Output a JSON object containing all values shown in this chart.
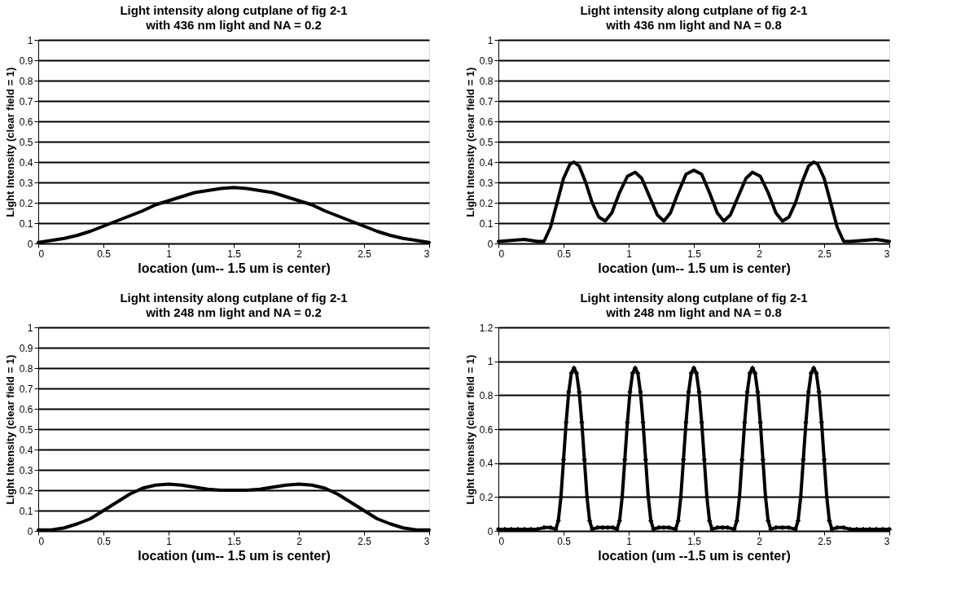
{
  "chart_data": [
    {
      "type": "line",
      "title": "Light intensity along cutplane of fig 2-1",
      "subtitle": "with 436 nm light and NA = 0.2",
      "xlabel": "location (um-- 1.5 um is center)",
      "ylabel": "Light Intensity (clear field = 1)",
      "xlim": [
        0,
        3
      ],
      "xticks": [
        0,
        0.5,
        1,
        1.5,
        2,
        2.5,
        3
      ],
      "ylim": [
        0,
        1
      ],
      "yticks": [
        0,
        0.1,
        0.2,
        0.3,
        0.4,
        0.5,
        0.6,
        0.7,
        0.8,
        0.9,
        1
      ],
      "grid": "y",
      "marker": "none",
      "line_style": "solid",
      "series": [
        {
          "color": "#000000",
          "x": [
            0,
            0.1,
            0.2,
            0.3,
            0.4,
            0.5,
            0.6,
            0.7,
            0.8,
            0.9,
            1.0,
            1.1,
            1.2,
            1.3,
            1.4,
            1.5,
            1.6,
            1.7,
            1.8,
            1.9,
            2.0,
            2.1,
            2.2,
            2.3,
            2.4,
            2.5,
            2.6,
            2.7,
            2.8,
            2.9,
            3.0
          ],
          "values": [
            0.005,
            0.015,
            0.025,
            0.04,
            0.06,
            0.085,
            0.11,
            0.135,
            0.16,
            0.19,
            0.21,
            0.23,
            0.25,
            0.26,
            0.27,
            0.275,
            0.27,
            0.26,
            0.25,
            0.23,
            0.21,
            0.19,
            0.16,
            0.135,
            0.11,
            0.085,
            0.06,
            0.04,
            0.025,
            0.015,
            0.005
          ]
        }
      ]
    },
    {
      "type": "line",
      "title": "Light intensity along cutplane of fig 2-1",
      "subtitle": "with 436 nm light and NA = 0.8",
      "xlabel": "location (um-- 1.5 um is center)",
      "ylabel": "Light Intensity (clear field = 1)",
      "xlim": [
        0,
        3
      ],
      "xticks": [
        0,
        0.5,
        1,
        1.5,
        2,
        2.5,
        3
      ],
      "ylim": [
        0,
        1
      ],
      "yticks": [
        0,
        0.1,
        0.2,
        0.3,
        0.4,
        0.5,
        0.6,
        0.7,
        0.8,
        0.9,
        1
      ],
      "grid": "y",
      "marker": "none",
      "line_style": "solid",
      "series": [
        {
          "color": "#000000",
          "x": [
            0,
            0.1,
            0.2,
            0.3,
            0.35,
            0.4,
            0.45,
            0.5,
            0.55,
            0.58,
            0.62,
            0.67,
            0.72,
            0.77,
            0.82,
            0.87,
            0.93,
            0.99,
            1.05,
            1.1,
            1.16,
            1.22,
            1.27,
            1.32,
            1.38,
            1.44,
            1.5,
            1.56,
            1.62,
            1.68,
            1.73,
            1.78,
            1.84,
            1.9,
            1.95,
            2.01,
            2.07,
            2.13,
            2.18,
            2.23,
            2.28,
            2.33,
            2.38,
            2.42,
            2.45,
            2.5,
            2.55,
            2.6,
            2.65,
            2.7,
            2.8,
            2.9,
            3.0
          ],
          "values": [
            0.01,
            0.015,
            0.02,
            0.01,
            0.01,
            0.08,
            0.2,
            0.32,
            0.39,
            0.4,
            0.38,
            0.3,
            0.2,
            0.13,
            0.11,
            0.15,
            0.25,
            0.33,
            0.35,
            0.32,
            0.23,
            0.14,
            0.11,
            0.15,
            0.25,
            0.34,
            0.36,
            0.34,
            0.25,
            0.15,
            0.11,
            0.14,
            0.23,
            0.32,
            0.35,
            0.33,
            0.25,
            0.15,
            0.11,
            0.13,
            0.2,
            0.3,
            0.38,
            0.4,
            0.39,
            0.32,
            0.2,
            0.08,
            0.01,
            0.01,
            0.015,
            0.02,
            0.01
          ]
        }
      ]
    },
    {
      "type": "line",
      "title": "Light intensity along cutplane of fig 2-1",
      "subtitle": "with 248 nm light and NA = 0.2",
      "xlabel": "location (um-- 1.5 um is center)",
      "ylabel": "Light Intensity (clear field = 1)",
      "xlim": [
        0,
        3
      ],
      "xticks": [
        0,
        0.5,
        1,
        1.5,
        2,
        2.5,
        3
      ],
      "ylim": [
        0,
        1
      ],
      "yticks": [
        0,
        0.1,
        0.2,
        0.3,
        0.4,
        0.5,
        0.6,
        0.7,
        0.8,
        0.9,
        1
      ],
      "grid": "y",
      "marker": "none",
      "line_style": "solid",
      "series": [
        {
          "color": "#000000",
          "x": [
            0,
            0.1,
            0.2,
            0.3,
            0.4,
            0.5,
            0.6,
            0.7,
            0.8,
            0.9,
            1.0,
            1.1,
            1.2,
            1.3,
            1.4,
            1.5,
            1.6,
            1.7,
            1.8,
            1.9,
            2.0,
            2.1,
            2.2,
            2.3,
            2.4,
            2.5,
            2.6,
            2.7,
            2.8,
            2.9,
            3.0
          ],
          "values": [
            0.005,
            0.005,
            0.015,
            0.035,
            0.06,
            0.1,
            0.14,
            0.18,
            0.21,
            0.225,
            0.23,
            0.225,
            0.215,
            0.205,
            0.2,
            0.2,
            0.2,
            0.205,
            0.215,
            0.225,
            0.23,
            0.225,
            0.21,
            0.18,
            0.14,
            0.1,
            0.06,
            0.035,
            0.015,
            0.005,
            0.005
          ]
        }
      ]
    },
    {
      "type": "line",
      "title": "Light intensity along cutplane of fig 2-1",
      "subtitle": "with 248 nm light and NA = 0.8",
      "xlabel": "location (um --1.5 um is center)",
      "ylabel": "Light Intensity (clear field = 1)",
      "xlim": [
        0,
        3
      ],
      "xticks": [
        0,
        0.5,
        1,
        1.5,
        2,
        2.5,
        3
      ],
      "ylim": [
        0,
        1.2
      ],
      "yticks": [
        0,
        0.2,
        0.4,
        0.6,
        0.8,
        1,
        1.2
      ],
      "grid": "y",
      "marker": "diamond",
      "line_style": "solid",
      "series": [
        {
          "color": "#000000",
          "x": [
            0,
            0.05,
            0.1,
            0.15,
            0.2,
            0.25,
            0.3,
            0.35,
            0.4,
            0.44,
            0.46,
            0.48,
            0.5,
            0.52,
            0.54,
            0.56,
            0.58,
            0.6,
            0.62,
            0.64,
            0.66,
            0.68,
            0.7,
            0.72,
            0.76,
            0.8,
            0.84,
            0.88,
            0.91,
            0.93,
            0.95,
            0.97,
            0.99,
            1.01,
            1.03,
            1.05,
            1.07,
            1.09,
            1.11,
            1.13,
            1.15,
            1.17,
            1.19,
            1.23,
            1.27,
            1.31,
            1.36,
            1.38,
            1.4,
            1.42,
            1.44,
            1.46,
            1.48,
            1.5,
            1.52,
            1.54,
            1.56,
            1.58,
            1.6,
            1.62,
            1.64,
            1.68,
            1.72,
            1.76,
            1.81,
            1.83,
            1.85,
            1.87,
            1.89,
            1.91,
            1.93,
            1.95,
            1.97,
            1.99,
            2.01,
            2.03,
            2.05,
            2.07,
            2.09,
            2.13,
            2.18,
            2.23,
            2.28,
            2.3,
            2.32,
            2.34,
            2.36,
            2.38,
            2.4,
            2.42,
            2.44,
            2.46,
            2.48,
            2.5,
            2.52,
            2.54,
            2.56,
            2.6,
            2.65,
            2.7,
            2.75,
            2.8,
            2.85,
            2.9,
            2.95,
            3.0
          ],
          "values": [
            0.01,
            0.01,
            0.01,
            0.01,
            0.01,
            0.01,
            0.01,
            0.02,
            0.02,
            0.01,
            0.06,
            0.2,
            0.42,
            0.64,
            0.82,
            0.93,
            0.96,
            0.93,
            0.82,
            0.64,
            0.42,
            0.2,
            0.06,
            0.01,
            0.02,
            0.02,
            0.02,
            0.02,
            0.01,
            0.06,
            0.2,
            0.42,
            0.64,
            0.82,
            0.93,
            0.96,
            0.93,
            0.82,
            0.64,
            0.42,
            0.2,
            0.06,
            0.01,
            0.02,
            0.02,
            0.02,
            0.01,
            0.06,
            0.2,
            0.42,
            0.64,
            0.82,
            0.93,
            0.96,
            0.93,
            0.82,
            0.64,
            0.42,
            0.2,
            0.06,
            0.01,
            0.02,
            0.02,
            0.02,
            0.01,
            0.06,
            0.2,
            0.42,
            0.64,
            0.82,
            0.93,
            0.96,
            0.93,
            0.82,
            0.64,
            0.42,
            0.2,
            0.06,
            0.01,
            0.02,
            0.02,
            0.02,
            0.01,
            0.06,
            0.2,
            0.42,
            0.64,
            0.82,
            0.93,
            0.96,
            0.93,
            0.82,
            0.64,
            0.42,
            0.2,
            0.06,
            0.01,
            0.02,
            0.02,
            0.01,
            0.01,
            0.01,
            0.01,
            0.01,
            0.01,
            0.01
          ]
        }
      ]
    }
  ]
}
